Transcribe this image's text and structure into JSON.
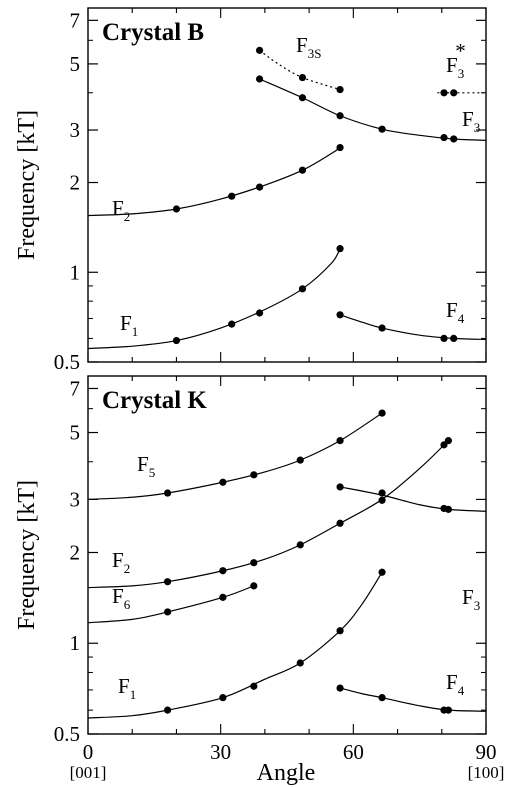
{
  "chart_data": [
    {
      "type": "scatter",
      "title": "Crystal B",
      "xlabel": "Angle",
      "ylabel": "Frequency [kT]",
      "xlim": [
        0,
        90
      ],
      "ylim": [
        0.5,
        7.7
      ],
      "yscale": "log",
      "xticks": [
        "0",
        "30",
        "60",
        "90"
      ],
      "yticks": [
        {
          "value": 0.5,
          "label": "0.5"
        },
        {
          "value": 1,
          "label": "1"
        },
        {
          "value": 2,
          "label": "2"
        },
        {
          "value": 3,
          "label": "3"
        },
        {
          "value": 5,
          "label": "5"
        },
        {
          "value": 7,
          "label": "7"
        }
      ],
      "series": [
        {
          "main": "F",
          "sub": "1",
          "sup": "",
          "line": "solid",
          "points": [
            [
              20,
              0.59
            ],
            [
              32.5,
              0.67
            ],
            [
              38.8,
              0.73
            ],
            [
              48.5,
              0.88
            ],
            [
              57,
              1.2
            ]
          ],
          "curve": [
            [
              0,
              0.555
            ],
            [
              10,
              0.565
            ],
            [
              20,
              0.59
            ],
            [
              30,
              0.65
            ],
            [
              40,
              0.75
            ],
            [
              48.5,
              0.88
            ],
            [
              55,
              1.07
            ],
            [
              57,
              1.2
            ]
          ]
        },
        {
          "main": "F",
          "sub": "2",
          "sup": "",
          "line": "solid",
          "points": [
            [
              20,
              1.63
            ],
            [
              32.5,
              1.8
            ],
            [
              38.8,
              1.93
            ],
            [
              48.5,
              2.2
            ],
            [
              57,
              2.62
            ]
          ],
          "curve": [
            [
              0,
              1.55
            ],
            [
              10,
              1.57
            ],
            [
              20,
              1.63
            ],
            [
              30,
              1.76
            ],
            [
              40,
              1.96
            ],
            [
              48.5,
              2.2
            ],
            [
              55,
              2.5
            ],
            [
              57,
              2.62
            ]
          ]
        },
        {
          "main": "F",
          "sub": "3",
          "sup": "",
          "line": "solid",
          "points": [
            [
              38.8,
              4.45
            ],
            [
              48.5,
              3.85
            ],
            [
              57,
              3.35
            ],
            [
              66.5,
              3.02
            ],
            [
              80.5,
              2.83
            ],
            [
              82.7,
              2.8
            ]
          ],
          "curve": [
            [
              38.8,
              4.45
            ],
            [
              48.5,
              3.85
            ],
            [
              57,
              3.35
            ],
            [
              66.5,
              3.02
            ],
            [
              75,
              2.88
            ],
            [
              82.7,
              2.8
            ],
            [
              90,
              2.77
            ]
          ]
        },
        {
          "main": "F",
          "sub": "3S",
          "sup": "",
          "line": "dotted",
          "points": [
            [
              38.8,
              5.55
            ],
            [
              48.5,
              4.5
            ],
            [
              57,
              4.1
            ]
          ],
          "curve": [
            [
              38.8,
              5.55
            ],
            [
              43,
              5.0
            ],
            [
              48.5,
              4.5
            ],
            [
              57,
              4.1
            ]
          ]
        },
        {
          "main": "F",
          "sub": "3",
          "sup": "*",
          "line": "dotted",
          "points": [
            [
              80.5,
              4.0
            ],
            [
              82.7,
              4.0
            ]
          ],
          "curve": [
            [
              79,
              4.0
            ],
            [
              90,
              4.0
            ]
          ]
        },
        {
          "main": "F",
          "sub": "4",
          "sup": "",
          "line": "solid",
          "points": [
            [
              57,
              0.72
            ],
            [
              66.5,
              0.65
            ],
            [
              80.5,
              0.6
            ],
            [
              82.7,
              0.6
            ]
          ],
          "curve": [
            [
              57,
              0.72
            ],
            [
              62,
              0.68
            ],
            [
              66.5,
              0.65
            ],
            [
              75,
              0.615
            ],
            [
              82.7,
              0.6
            ],
            [
              90,
              0.595
            ]
          ]
        }
      ]
    },
    {
      "type": "scatter",
      "title": "Crystal K",
      "xlabel": "Angle",
      "ylabel": "Frequency [kT]",
      "xlim": [
        0,
        90
      ],
      "ylim": [
        0.5,
        7.7
      ],
      "yscale": "log",
      "xticks": [
        "0",
        "30",
        "60",
        "90"
      ],
      "yticks": [
        {
          "value": 0.5,
          "label": "0.5"
        },
        {
          "value": 1,
          "label": "1"
        },
        {
          "value": 2,
          "label": "2"
        },
        {
          "value": 3,
          "label": "3"
        },
        {
          "value": 5,
          "label": "5"
        },
        {
          "value": 7,
          "label": "7"
        }
      ],
      "series": [
        {
          "main": "F",
          "sub": "1",
          "sup": "",
          "line": "solid",
          "points": [
            [
              18,
              0.6
            ],
            [
              30.5,
              0.66
            ],
            [
              37.5,
              0.72
            ],
            [
              48,
              0.86
            ],
            [
              57,
              1.1
            ],
            [
              66.5,
              1.72
            ]
          ],
          "curve": [
            [
              0,
              0.565
            ],
            [
              10,
              0.575
            ],
            [
              18,
              0.6
            ],
            [
              30.5,
              0.66
            ],
            [
              40,
              0.76
            ],
            [
              48,
              0.86
            ],
            [
              57,
              1.1
            ],
            [
              62,
              1.35
            ],
            [
              66.5,
              1.72
            ]
          ]
        },
        {
          "main": "F",
          "sub": "2",
          "sup": "",
          "line": "solid",
          "points": [
            [
              18,
              1.6
            ],
            [
              30.5,
              1.74
            ],
            [
              37.5,
              1.85
            ],
            [
              48,
              2.12
            ],
            [
              57,
              2.5
            ],
            [
              66.5,
              2.98
            ],
            [
              80.5,
              4.55
            ],
            [
              81.5,
              4.7
            ]
          ],
          "curve": [
            [
              0,
              1.53
            ],
            [
              10,
              1.55
            ],
            [
              18,
              1.6
            ],
            [
              30.5,
              1.74
            ],
            [
              40,
              1.9
            ],
            [
              48,
              2.12
            ],
            [
              57,
              2.5
            ],
            [
              66.5,
              3.0
            ],
            [
              75,
              3.8
            ],
            [
              81.5,
              4.7
            ]
          ]
        },
        {
          "main": "F",
          "sub": "3",
          "sup": "",
          "line": "solid",
          "points": [
            [
              57,
              3.3
            ],
            [
              66.5,
              3.15
            ],
            [
              80.5,
              2.8
            ],
            [
              81.5,
              2.78
            ]
          ],
          "curve": [
            [
              57,
              3.3
            ],
            [
              66.5,
              3.1
            ],
            [
              75,
              2.88
            ],
            [
              81.5,
              2.78
            ],
            [
              90,
              2.74
            ]
          ]
        },
        {
          "main": "F",
          "sub": "4",
          "sup": "",
          "line": "solid",
          "points": [
            [
              57,
              0.71
            ],
            [
              66.5,
              0.66
            ],
            [
              80.5,
              0.6
            ],
            [
              81.5,
              0.6
            ]
          ],
          "curve": [
            [
              57,
              0.71
            ],
            [
              62,
              0.68
            ],
            [
              66.5,
              0.66
            ],
            [
              75,
              0.62
            ],
            [
              81.5,
              0.6
            ],
            [
              90,
              0.595
            ]
          ]
        },
        {
          "main": "F",
          "sub": "5",
          "sup": "",
          "line": "solid",
          "points": [
            [
              18,
              3.15
            ],
            [
              30.5,
              3.42
            ],
            [
              37.5,
              3.62
            ],
            [
              48,
              4.05
            ],
            [
              57,
              4.7
            ],
            [
              66.5,
              5.8
            ]
          ],
          "curve": [
            [
              0,
              3.0
            ],
            [
              10,
              3.05
            ],
            [
              18,
              3.15
            ],
            [
              30.5,
              3.42
            ],
            [
              40,
              3.7
            ],
            [
              48,
              4.05
            ],
            [
              57,
              4.7
            ],
            [
              66.5,
              5.8
            ]
          ]
        },
        {
          "main": "F",
          "sub": "6",
          "sup": "",
          "line": "solid",
          "points": [
            [
              18,
              1.27
            ],
            [
              30.5,
              1.42
            ],
            [
              37.5,
              1.55
            ]
          ],
          "curve": [
            [
              0,
              1.17
            ],
            [
              10,
              1.2
            ],
            [
              18,
              1.27
            ],
            [
              30.5,
              1.42
            ],
            [
              37.5,
              1.55
            ]
          ]
        }
      ]
    }
  ],
  "axis_end_labels": {
    "left": "[001]",
    "right": "[100]"
  }
}
